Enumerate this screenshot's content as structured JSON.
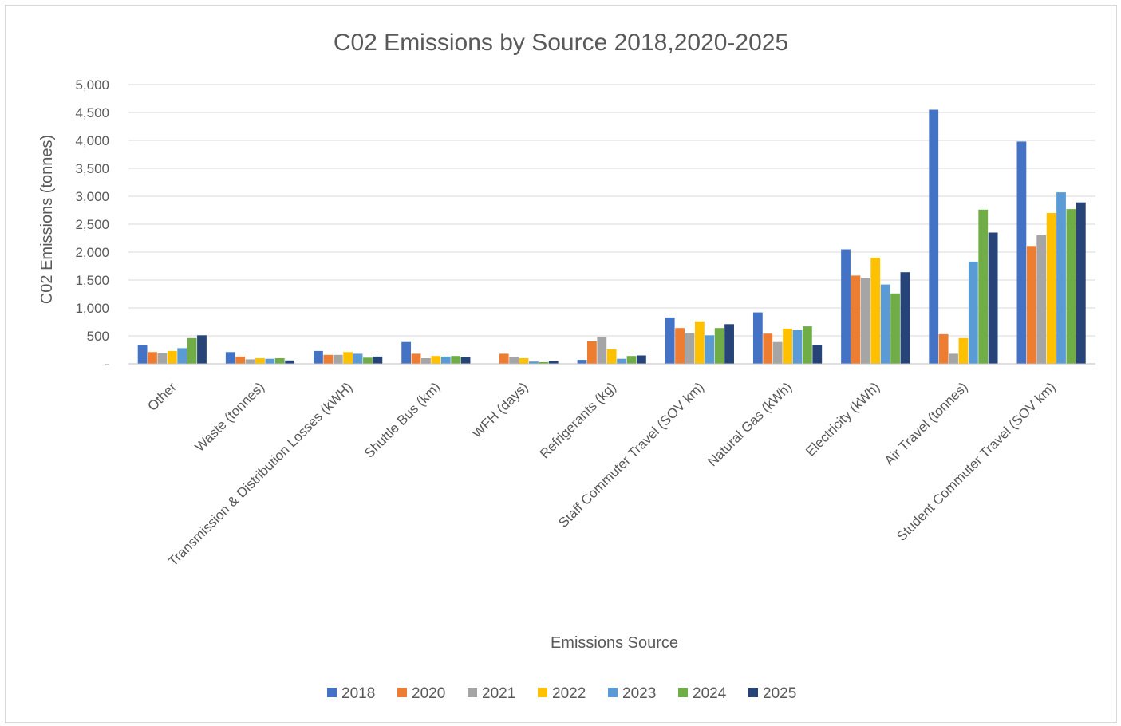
{
  "chart_data": {
    "type": "bar",
    "title": "C02 Emissions by Source 2018,2020-2025",
    "xlabel": "Emissions Source",
    "ylabel": "C02 Emissions (tonnes)",
    "ylim": [
      0,
      5000
    ],
    "yticks": [
      0,
      500,
      1000,
      1500,
      2000,
      2500,
      3000,
      3500,
      4000,
      4500,
      5000
    ],
    "ytick_labels": [
      "-",
      "500",
      "1,000",
      "1,500",
      "2,000",
      "2,500",
      "3,000",
      "3,500",
      "4,000",
      "4,500",
      "5,000"
    ],
    "grid": true,
    "legend_position": "bottom",
    "categories": [
      "Other",
      "Waste (tonnes)",
      "Transmission & Distribution Losses (kWH)",
      "Shuttle Bus (km)",
      "WFH (days)",
      "Refrigerants (kg)",
      "Staff Commuter Travel (SOV km)",
      "Natural Gas (kWh)",
      "Electricity (kWh)",
      "Air Travel (tonnes)",
      "Student Commuter Travel (SOV km)"
    ],
    "series": [
      {
        "name": "2018",
        "color": "#4472c4",
        "values": [
          340,
          210,
          230,
          390,
          0,
          70,
          830,
          920,
          2050,
          4550,
          3980
        ]
      },
      {
        "name": "2020",
        "color": "#ed7d31",
        "values": [
          210,
          130,
          160,
          180,
          180,
          400,
          640,
          540,
          1580,
          530,
          2110
        ]
      },
      {
        "name": "2021",
        "color": "#a5a5a5",
        "values": [
          190,
          80,
          160,
          100,
          120,
          480,
          550,
          390,
          1540,
          180,
          2300
        ]
      },
      {
        "name": "2022",
        "color": "#ffc000",
        "values": [
          230,
          100,
          210,
          140,
          100,
          260,
          760,
          630,
          1900,
          460,
          2700
        ]
      },
      {
        "name": "2023",
        "color": "#5b9bd5",
        "values": [
          280,
          90,
          180,
          130,
          40,
          90,
          510,
          600,
          1420,
          1830,
          3070
        ]
      },
      {
        "name": "2024",
        "color": "#70ad47",
        "values": [
          460,
          100,
          110,
          140,
          30,
          140,
          640,
          670,
          1260,
          2760,
          2770
        ]
      },
      {
        "name": "2025",
        "color": "#264478",
        "values": [
          510,
          60,
          130,
          120,
          50,
          150,
          710,
          340,
          1640,
          2350,
          2890
        ]
      }
    ]
  }
}
